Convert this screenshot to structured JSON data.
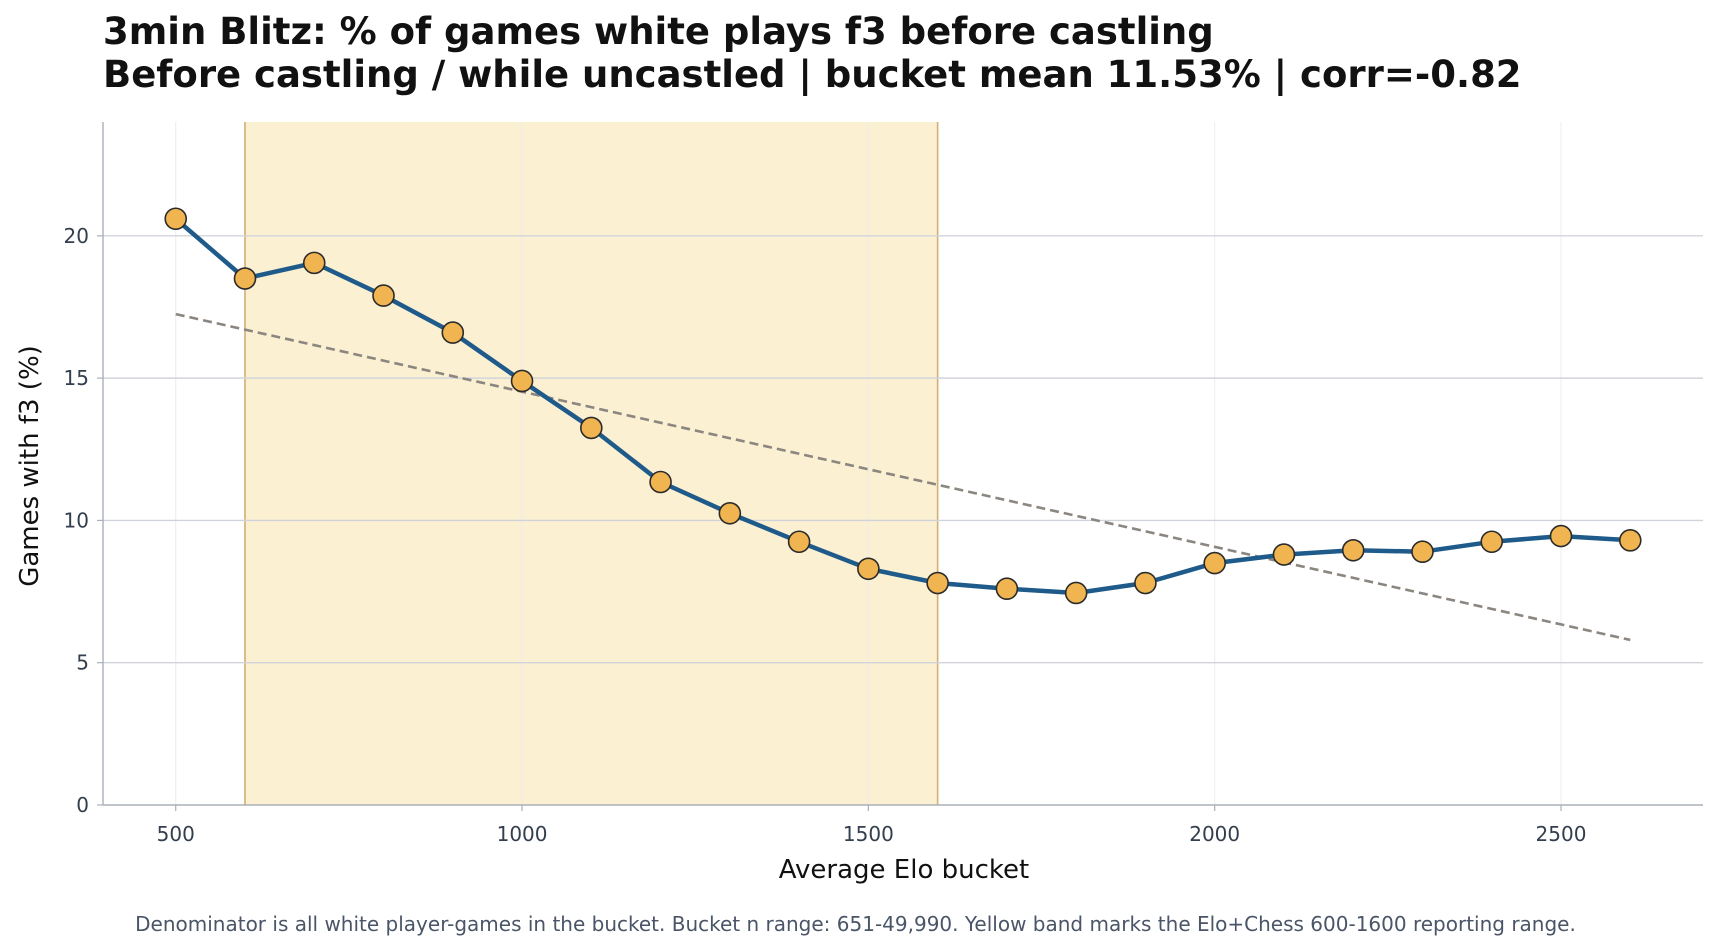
{
  "chart_data": {
    "type": "line",
    "title": "3min Blitz: % of games white plays f3 before castling",
    "subtitle": "Before castling / while uncastled | bucket mean 11.53% | corr=-0.82",
    "xlabel": "Average Elo bucket",
    "ylabel": "Games with f3 (%)",
    "xlim": [
      395,
      2705
    ],
    "ylim": [
      0,
      24
    ],
    "x_ticks": [
      500,
      1000,
      1500,
      2000,
      2500
    ],
    "y_ticks": [
      0,
      5,
      10,
      15,
      20
    ],
    "grid": true,
    "highlight_band": {
      "x_from": 600,
      "x_to": 1600,
      "color": "#fbf0d2",
      "edge_color": "#d4ae72"
    },
    "series": [
      {
        "color": "#1f5b8a",
        "marker_color": "#f0b550",
        "x": [
          500,
          600,
          700,
          800,
          900,
          1000,
          1100,
          1200,
          1300,
          1400,
          1500,
          1600,
          1700,
          1800,
          1900,
          2000,
          2100,
          2200,
          2300,
          2400,
          2500,
          2600
        ],
        "values": [
          20.6,
          18.5,
          19.05,
          17.9,
          16.6,
          14.9,
          13.25,
          11.35,
          10.25,
          9.25,
          8.3,
          7.8,
          7.6,
          7.45,
          7.8,
          8.5,
          8.8,
          8.95,
          8.9,
          9.25,
          9.45,
          9.3
        ]
      }
    ],
    "trend_line": {
      "x": [
        500,
        2600
      ],
      "values": [
        17.25,
        5.8
      ],
      "color": "#8c8680",
      "style": "dashed"
    }
  },
  "footnote": "Denominator is all white player-games in the bucket. Bucket n range: 651-49,990. Yellow band marks the Elo+Chess 600-1600 reporting range."
}
